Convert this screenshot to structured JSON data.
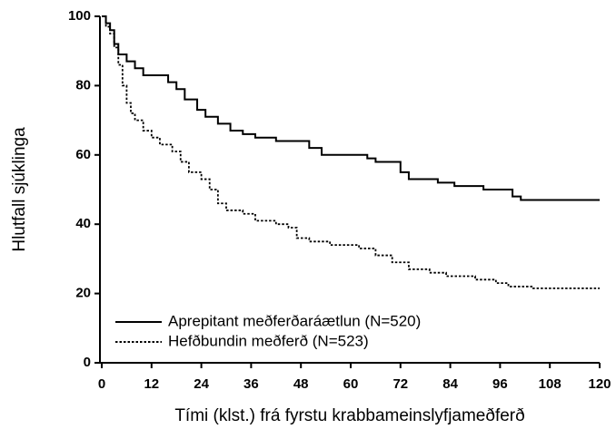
{
  "chart_data": {
    "type": "line",
    "step": true,
    "xlabel": "Tími (klst.) frá fyrstu krabbameinslyfjameðferð",
    "ylabel": "Hlutfall sjúklinga",
    "xlim": [
      0,
      120
    ],
    "xticks": [
      0,
      12,
      24,
      36,
      48,
      60,
      72,
      84,
      96,
      108,
      120
    ],
    "ylim": [
      0,
      100
    ],
    "yticks": [
      0,
      20,
      40,
      60,
      80,
      100
    ],
    "grid": false,
    "legend": "lower left",
    "series": [
      {
        "name": "Aprepitant meðferðaráætlun (N=520)",
        "color": "#000000",
        "dash": "solid",
        "x": [
          0,
          1,
          2,
          3,
          4,
          6,
          8,
          10,
          16,
          18,
          20,
          23,
          25,
          28,
          31,
          34,
          37,
          42,
          50,
          53,
          64,
          66,
          72,
          74,
          81,
          85,
          92,
          99,
          101,
          120
        ],
        "values": [
          100,
          98,
          96,
          92,
          89,
          87,
          85,
          83,
          81,
          79,
          76,
          73,
          71,
          69,
          67,
          66,
          65,
          64,
          62,
          60,
          59,
          58,
          55,
          53,
          52,
          51,
          50,
          48,
          47,
          47
        ]
      },
      {
        "name": "Hefðbundin meðferð (N=523)",
        "color": "#000000",
        "dash": "dotted",
        "x": [
          0,
          1,
          2,
          3,
          4,
          5,
          6,
          7,
          8,
          10,
          12,
          14,
          17,
          19,
          21,
          24,
          26,
          28,
          30,
          34,
          37,
          42,
          45,
          47,
          50,
          55,
          62,
          66,
          70,
          74,
          79,
          83,
          90,
          95,
          98,
          104,
          120
        ],
        "values": [
          100,
          97,
          95,
          91,
          86,
          80,
          75,
          72,
          70,
          67,
          65,
          63,
          61,
          58,
          55,
          53,
          50,
          46,
          44,
          43,
          41,
          40,
          39,
          36,
          35,
          34,
          33,
          31,
          29,
          27,
          26,
          25,
          24,
          23,
          22,
          21.5,
          21.5
        ]
      }
    ]
  }
}
